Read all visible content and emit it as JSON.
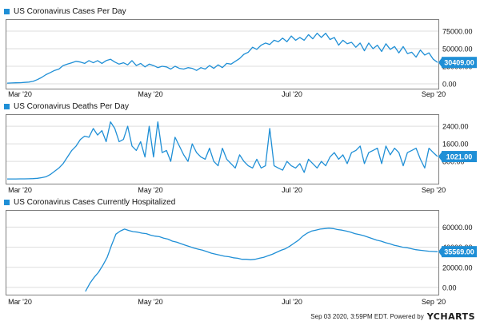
{
  "colors": {
    "line": "#1f8fd6",
    "grid": "#dddddd",
    "frame": "#7f7f7f",
    "label_bg": "#1f8fd6"
  },
  "footer": {
    "text": "Sep 03 2020, 3:59PM EDT.  Powered by",
    "brand": "YCHARTS"
  },
  "chart_data": [
    {
      "type": "line",
      "title": "US Coronavirus Cases Per Day",
      "x_axis_labels": [
        "Mar '20",
        "May '20",
        "Jul '20",
        "Sep '20"
      ],
      "y_ticks": [
        "75000.00",
        "50000.00",
        "25000.00",
        "0.00"
      ],
      "y_tick_values": [
        75000,
        50000,
        25000,
        0
      ],
      "ylim": [
        -8000,
        92000
      ],
      "last_value_label": "30409.00",
      "series": [
        {
          "values": [
            1000,
            1200,
            1400,
            1600,
            2000,
            2500,
            3500,
            6000,
            9000,
            13000,
            16000,
            19000,
            21000,
            26000,
            28000,
            30000,
            32000,
            31000,
            29000,
            33000,
            30000,
            33000,
            29000,
            33000,
            35000,
            31000,
            28000,
            30000,
            27000,
            33000,
            26000,
            29000,
            24000,
            28000,
            26000,
            23000,
            25000,
            24000,
            21000,
            25000,
            22000,
            21000,
            23000,
            22000,
            19000,
            23000,
            21000,
            26000,
            22000,
            27000,
            23000,
            29000,
            28000,
            32000,
            36000,
            42000,
            45000,
            52000,
            49000,
            55000,
            58000,
            56000,
            62000,
            60000,
            65000,
            60000,
            68000,
            62000,
            66000,
            62000,
            70000,
            64000,
            72000,
            66000,
            72000,
            63000,
            66000,
            55000,
            62000,
            57000,
            59000,
            52000,
            58000,
            47000,
            58000,
            50000,
            55000,
            46000,
            57000,
            49000,
            53000,
            44000,
            53000,
            43000,
            45000,
            38000,
            48000,
            41000,
            44000,
            35000,
            30409
          ]
        }
      ]
    },
    {
      "type": "line",
      "title": "US Coronavirus Deaths Per Day",
      "x_axis_labels": [
        "Mar '20",
        "May '20",
        "Jul '20",
        "Sep '20"
      ],
      "y_ticks": [
        "2400.00",
        "1600.00",
        "800.00"
      ],
      "y_tick_values": [
        2400,
        1600,
        800
      ],
      "ylim": [
        -250,
        2950
      ],
      "last_value_label": "1021.00",
      "series": [
        {
          "values": [
            0,
            0,
            2,
            3,
            5,
            8,
            15,
            30,
            60,
            100,
            200,
            350,
            500,
            700,
            1000,
            1300,
            1500,
            1800,
            1950,
            1900,
            2300,
            2000,
            2200,
            1700,
            2600,
            2300,
            1700,
            1800,
            2400,
            1500,
            1300,
            1700,
            1000,
            2400,
            1000,
            2600,
            1200,
            1300,
            800,
            1900,
            1500,
            1100,
            800,
            1600,
            1200,
            1000,
            900,
            1400,
            800,
            600,
            1400,
            900,
            700,
            500,
            1100,
            800,
            600,
            500,
            900,
            500,
            600,
            2300,
            600,
            500,
            400,
            800,
            600,
            500,
            700,
            300,
            900,
            700,
            500,
            800,
            600,
            1000,
            1200,
            900,
            1100,
            700,
            1200,
            1300,
            1500,
            700,
            1200,
            1300,
            1400,
            700,
            1500,
            1100,
            1400,
            1200,
            600,
            1200,
            1300,
            1400,
            900,
            500,
            1400,
            1200,
            1021
          ]
        }
      ]
    },
    {
      "type": "line",
      "title": "US Coronavirus Cases Currently Hospitalized",
      "x_axis_labels": [
        "Mar '20",
        "May '20",
        "Jul '20",
        "Sep '20"
      ],
      "y_ticks": [
        "60000.00",
        "40000.00",
        "20000.00",
        "0.00"
      ],
      "y_tick_values": [
        60000,
        40000,
        20000,
        0
      ],
      "ylim": [
        -8000,
        77000
      ],
      "last_value_label": "35569.00",
      "series": [
        {
          "values": [
            null,
            null,
            null,
            null,
            null,
            null,
            null,
            null,
            null,
            null,
            null,
            null,
            null,
            null,
            null,
            null,
            null,
            null,
            -4000,
            4000,
            10000,
            15000,
            22000,
            30000,
            42000,
            53000,
            56000,
            58000,
            56500,
            55500,
            55000,
            54000,
            53500,
            52000,
            51000,
            50500,
            49000,
            48000,
            46000,
            45000,
            43500,
            42000,
            40500,
            39000,
            38000,
            37000,
            35500,
            34000,
            33000,
            32000,
            31000,
            30500,
            29500,
            29000,
            28000,
            28000,
            27500,
            28000,
            29000,
            30000,
            31500,
            33000,
            35000,
            37000,
            38500,
            41000,
            44000,
            47000,
            51000,
            54000,
            56000,
            57000,
            58000,
            58500,
            59000,
            58500,
            57500,
            57000,
            56000,
            55000,
            53500,
            52500,
            51500,
            50000,
            48500,
            47000,
            46000,
            44500,
            43500,
            42000,
            41000,
            40000,
            39500,
            38500,
            37500,
            37000,
            36500,
            36000,
            35800,
            35569
          ]
        }
      ]
    }
  ]
}
